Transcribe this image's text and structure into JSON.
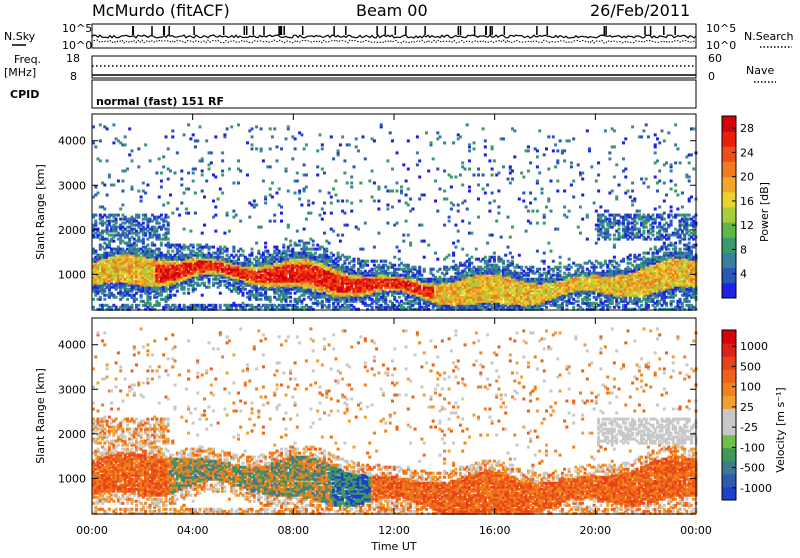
{
  "header": {
    "station": "McMurdo (fitACF)",
    "beam": "Beam 00",
    "date": "26/Feb/2011"
  },
  "status_panels": {
    "nsky_label": "N.Sky",
    "nsky_ticks": [
      "10^5",
      "10^0"
    ],
    "nsearch_label": "N.Search",
    "nsearch_ticks": [
      "10^5",
      "10^0"
    ],
    "freq_label_line1": "Freq.",
    "freq_label_line2": "[MHz]",
    "freq_ticks": [
      "18",
      "8"
    ],
    "nave_label": "Nave",
    "nave_ticks": [
      "60",
      "0"
    ],
    "cpid_label": "CPID",
    "cpid_text": "normal (fast) 151 RF"
  },
  "chart_data": [
    {
      "type": "heatmap",
      "parameter": "Power",
      "ylabel": "Slant Range [km]",
      "y_ticks": [
        1000,
        2000,
        3000,
        4000
      ],
      "ylim": [
        200,
        4600
      ],
      "xlim_hours": [
        0,
        24
      ],
      "colorbar": {
        "label": "Power [dB]",
        "ticks": [
          "4",
          "8",
          "12",
          "16",
          "20",
          "24",
          "28"
        ],
        "colors": [
          "#1e20e6",
          "#2a56b8",
          "#3b7fa0",
          "#3a9a6a",
          "#5fb548",
          "#a9cc3a",
          "#e8d52a",
          "#f0a72a",
          "#f07a1e",
          "#ef4e16",
          "#e8200f",
          "#d6000a"
        ]
      }
    },
    {
      "type": "heatmap",
      "parameter": "Velocity",
      "ylabel": "Slant Range [km]",
      "y_ticks": [
        1000,
        2000,
        3000,
        4000
      ],
      "ylim": [
        200,
        4600
      ],
      "xlim_hours": [
        0,
        24
      ],
      "colorbar": {
        "label": "Velocity [m s⁻¹]",
        "ticks": [
          "1000",
          "500",
          "100",
          "25",
          "-25",
          "-100",
          "-500",
          "-1000"
        ],
        "colors": [
          "#1e3fcc",
          "#2e5ab0",
          "#3d7a8e",
          "#3f9a5a",
          "#6fc04a",
          "#c8c8c8",
          "#c8c8c8",
          "#f0a030",
          "#f0821e",
          "#ec6218",
          "#e8421a",
          "#e02018",
          "#d8000c"
        ]
      }
    }
  ],
  "time_axis": {
    "ticks": [
      "00:00",
      "04:00",
      "08:00",
      "12:00",
      "16:00",
      "20:00",
      "00:00"
    ],
    "label": "Time UT"
  }
}
